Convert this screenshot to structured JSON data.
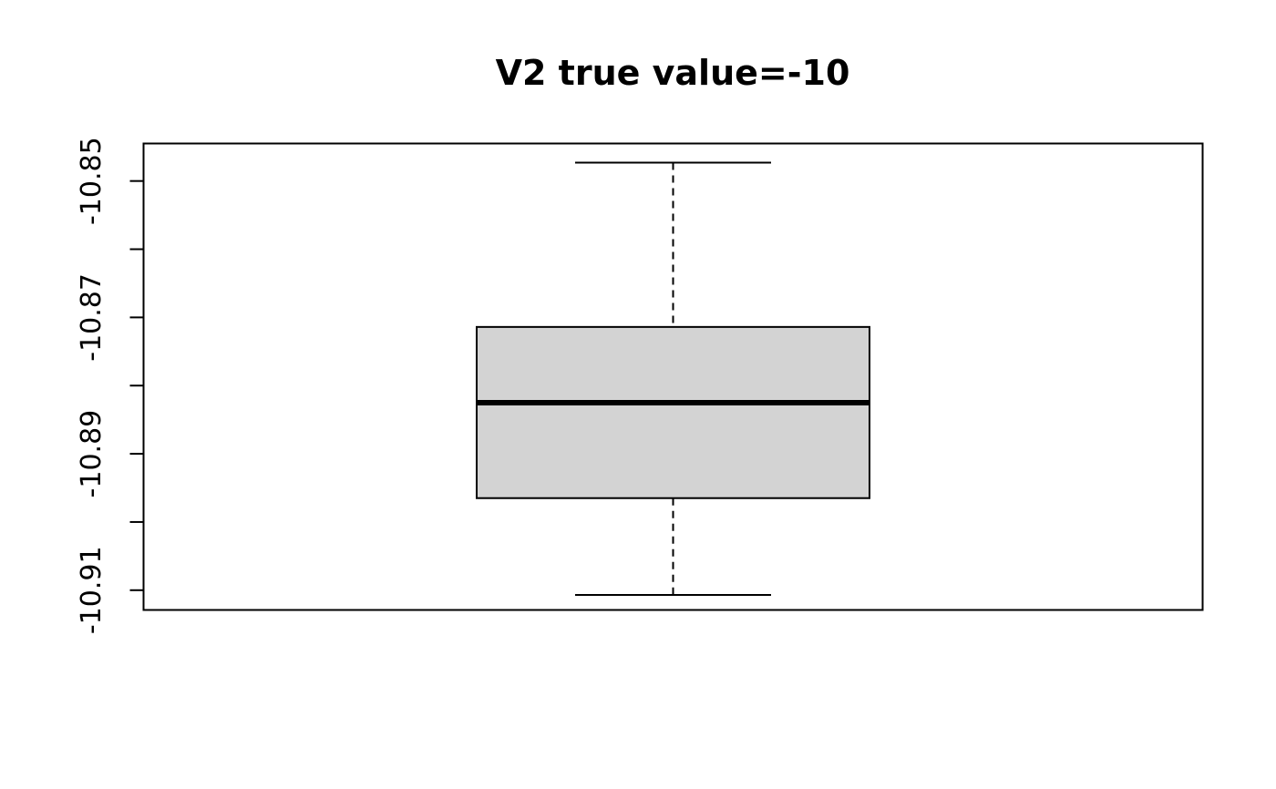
{
  "chart_data": {
    "type": "box",
    "title": "V2 true value=-10",
    "xlabel": "",
    "ylabel": "",
    "ylim": [
      -10.9129,
      -10.8445
    ],
    "y_ticks": [
      -10.85,
      -10.86,
      -10.87,
      -10.88,
      -10.89,
      -10.9,
      -10.91
    ],
    "y_tick_labels": [
      {
        "value": -10.85,
        "label": "-10.85"
      },
      {
        "value": -10.87,
        "label": "-10.87"
      },
      {
        "value": -10.89,
        "label": "-10.89"
      },
      {
        "value": -10.91,
        "label": "-10.91"
      }
    ],
    "box": {
      "whisker_high": -10.8473,
      "q3": -10.8714,
      "median": -10.8825,
      "q1": -10.8965,
      "whisker_low": -10.9107
    },
    "colors": {
      "box_fill": "#d3d3d3",
      "stroke": "#000000",
      "background": "#ffffff"
    }
  }
}
